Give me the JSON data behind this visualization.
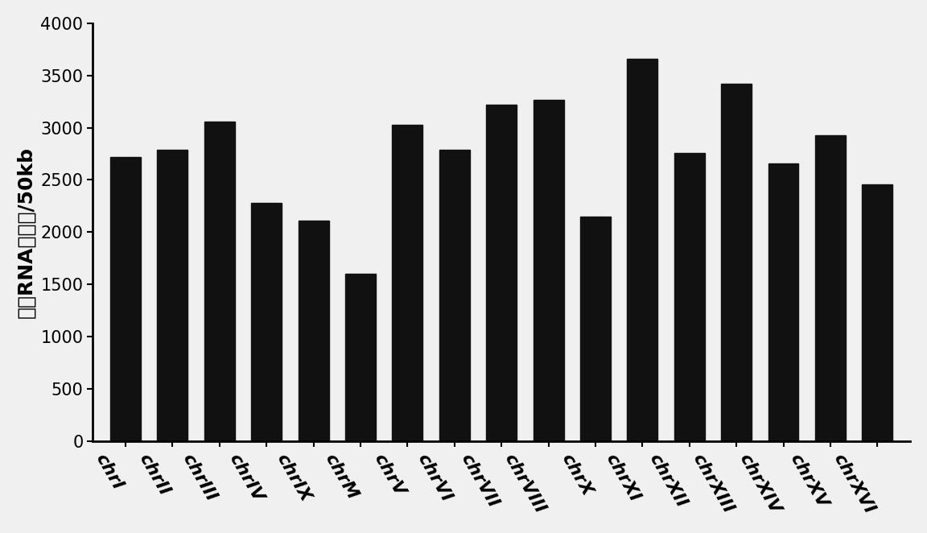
{
  "categories": [
    "chrI",
    "chrII",
    "chrIII",
    "chrIV",
    "chrIX",
    "chrM",
    "chrV",
    "chrVI",
    "chrVII",
    "chrVIII",
    "chrX",
    "chrXI",
    "chrXII",
    "chrXIII",
    "chrXIV",
    "chrXV",
    "chrXVI"
  ],
  "values": [
    2720,
    2790,
    3060,
    2280,
    2110,
    1600,
    3030,
    2790,
    3220,
    3270,
    2150,
    3660,
    2760,
    3420,
    2660,
    2930,
    2460
  ],
  "bar_color": "#111111",
  "ylabel": "诱导RNA的数量/50kb",
  "ylim": [
    0,
    4000
  ],
  "yticks": [
    0,
    500,
    1000,
    1500,
    2000,
    2500,
    3000,
    3500,
    4000
  ],
  "background_color": "#f0f0f0",
  "bar_width": 0.65,
  "ylabel_fontsize": 18,
  "tick_fontsize": 15,
  "xtick_fontsize": 16
}
